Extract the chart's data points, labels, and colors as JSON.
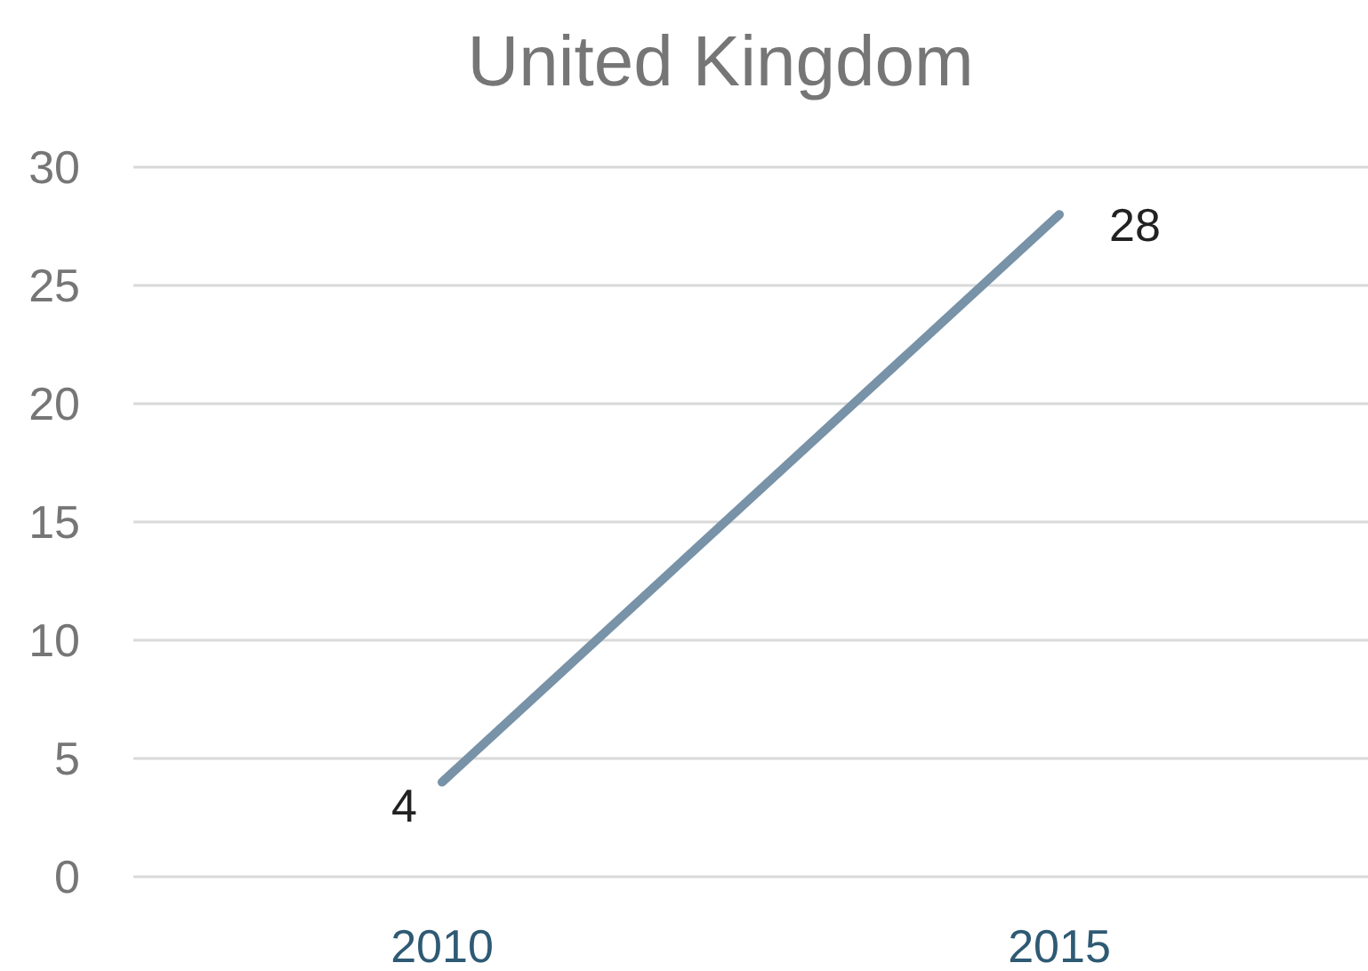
{
  "chart_data": {
    "type": "line",
    "title": "United Kingdom",
    "categories": [
      "2010",
      "2015"
    ],
    "series": [
      {
        "color": "#7892a8",
        "values": [
          4,
          28
        ]
      }
    ],
    "ylim": [
      0,
      30
    ],
    "yticks": [
      0,
      5,
      10,
      15,
      20,
      25,
      30
    ],
    "grid": "y",
    "data_labels": true,
    "marker": "none",
    "line_style": "solid"
  }
}
